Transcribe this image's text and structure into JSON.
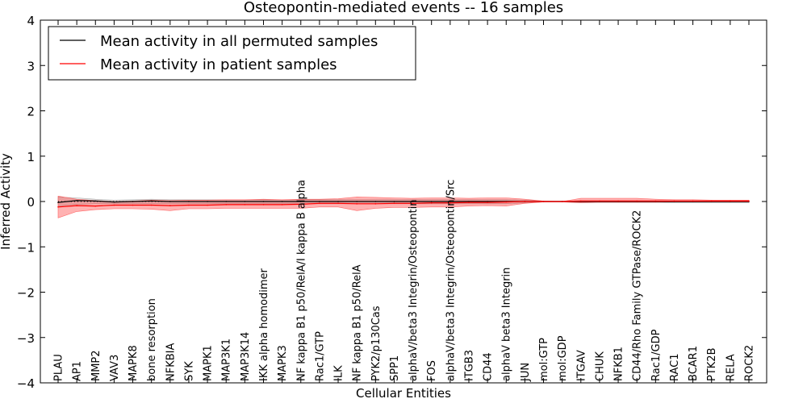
{
  "chart_data": {
    "type": "line",
    "title": "Osteopontin-mediated events -- 16 samples",
    "xlabel": "Cellular Entities",
    "ylabel": "Inferred Activity",
    "ylim": [
      -4,
      4
    ],
    "yticks": [
      4,
      3,
      2,
      1,
      0,
      -1,
      -2,
      -3,
      -4
    ],
    "ytick_labels": [
      "4",
      "3",
      "2",
      "1",
      "0",
      "−1",
      "−2",
      "−3",
      "−4"
    ],
    "legend_position": "top-left",
    "categories": [
      "PLAU",
      "AP1",
      "MMP2",
      "VAV3",
      "MAPK8",
      "bone resorption",
      "NFKBIA",
      "SYK",
      "MAPK1",
      "MAP3K1",
      "MAP3K14",
      "IKK alpha homodimer",
      "MAPK3",
      "NF kappa B1 p50/RelA/I kappa B alpha",
      "Rac1/GTP",
      "ILK",
      "NF kappa B1 p50/RelA",
      "PYK2/p130Cas",
      "SPP1",
      "alphaV/beta3 Integrin/Osteopontin",
      "FOS",
      "alphaV/beta3 Integrin/Osteopontin/Src",
      "ITGB3",
      "CD44",
      "alphaV beta3 Integrin",
      "JUN",
      "mol:GTP",
      "mol:GDP",
      "ITGAV",
      "CHUK",
      "NFKB1",
      "CD44/Rho Family GTPase/ROCK2",
      "Rac1/GDP",
      "RAC1",
      "BCAR1",
      "PTK2B",
      "RELA",
      "ROCK2"
    ],
    "series": [
      {
        "name": "Mean activity in all permuted samples",
        "color": "#000000",
        "values": [
          -0.02,
          0.02,
          0.01,
          -0.01,
          0.0,
          0.01,
          0.0,
          0.0,
          0.0,
          0.0,
          0.0,
          0.0,
          0.0,
          0.0,
          0.0,
          0.0,
          0.0,
          0.0,
          0.0,
          0.0,
          0.0,
          0.0,
          0.0,
          0.0,
          0.0,
          0.0,
          0.0,
          0.0,
          0.0,
          0.0,
          0.0,
          0.0,
          0.0,
          0.0,
          0.0,
          0.0,
          0.0,
          0.0
        ],
        "band_upper": [
          0.1,
          0.08,
          0.05,
          0.03,
          0.04,
          0.05,
          0.04,
          0.04,
          0.04,
          0.04,
          0.04,
          0.04,
          0.04,
          0.04,
          0.04,
          0.04,
          0.04,
          0.04,
          0.04,
          0.04,
          0.04,
          0.04,
          0.04,
          0.04,
          0.04,
          0.03,
          0.01,
          0.01,
          0.01,
          0.01,
          0.01,
          0.01,
          0.01,
          0.01,
          0.01,
          0.01,
          0.01,
          0.01
        ],
        "band_lower": [
          -0.1,
          -0.06,
          -0.05,
          -0.05,
          -0.05,
          -0.05,
          -0.05,
          -0.05,
          -0.05,
          -0.05,
          -0.05,
          -0.05,
          -0.05,
          -0.05,
          -0.05,
          -0.05,
          -0.05,
          -0.05,
          -0.05,
          -0.05,
          -0.05,
          -0.05,
          -0.05,
          -0.05,
          -0.05,
          -0.03,
          -0.01,
          -0.01,
          -0.01,
          -0.02,
          -0.02,
          -0.02,
          -0.02,
          -0.03,
          -0.03,
          -0.03,
          -0.03,
          -0.03
        ]
      },
      {
        "name": "Mean activity in patient samples",
        "color": "#ff0000",
        "values": [
          -0.12,
          -0.09,
          -0.1,
          -0.08,
          -0.08,
          -0.08,
          -0.09,
          -0.08,
          -0.08,
          -0.07,
          -0.07,
          -0.07,
          -0.07,
          -0.06,
          -0.04,
          -0.04,
          -0.05,
          -0.05,
          -0.04,
          -0.04,
          -0.03,
          -0.03,
          -0.02,
          -0.02,
          -0.01,
          0.0,
          0.0,
          0.0,
          0.01,
          0.01,
          0.01,
          0.01,
          0.01,
          0.01,
          0.01,
          0.01,
          0.01,
          0.01
        ],
        "band_upper": [
          0.12,
          0.05,
          0.02,
          0.0,
          0.01,
          0.03,
          0.02,
          0.03,
          0.03,
          0.04,
          0.04,
          0.05,
          0.04,
          0.05,
          0.05,
          0.06,
          0.1,
          0.09,
          0.08,
          0.07,
          0.08,
          0.08,
          0.07,
          0.08,
          0.08,
          0.05,
          0.01,
          0.0,
          0.07,
          0.07,
          0.07,
          0.07,
          0.05,
          0.04,
          0.04,
          0.03,
          0.03,
          0.03
        ],
        "band_lower": [
          -0.36,
          -0.22,
          -0.18,
          -0.16,
          -0.16,
          -0.17,
          -0.2,
          -0.16,
          -0.16,
          -0.15,
          -0.15,
          -0.15,
          -0.15,
          -0.15,
          -0.12,
          -0.12,
          -0.2,
          -0.15,
          -0.13,
          -0.13,
          -0.12,
          -0.12,
          -0.1,
          -0.09,
          -0.1,
          -0.04,
          -0.01,
          -0.01,
          -0.03,
          -0.02,
          -0.02,
          -0.02,
          -0.02,
          -0.01,
          -0.01,
          -0.01,
          -0.01,
          -0.01
        ]
      }
    ]
  }
}
